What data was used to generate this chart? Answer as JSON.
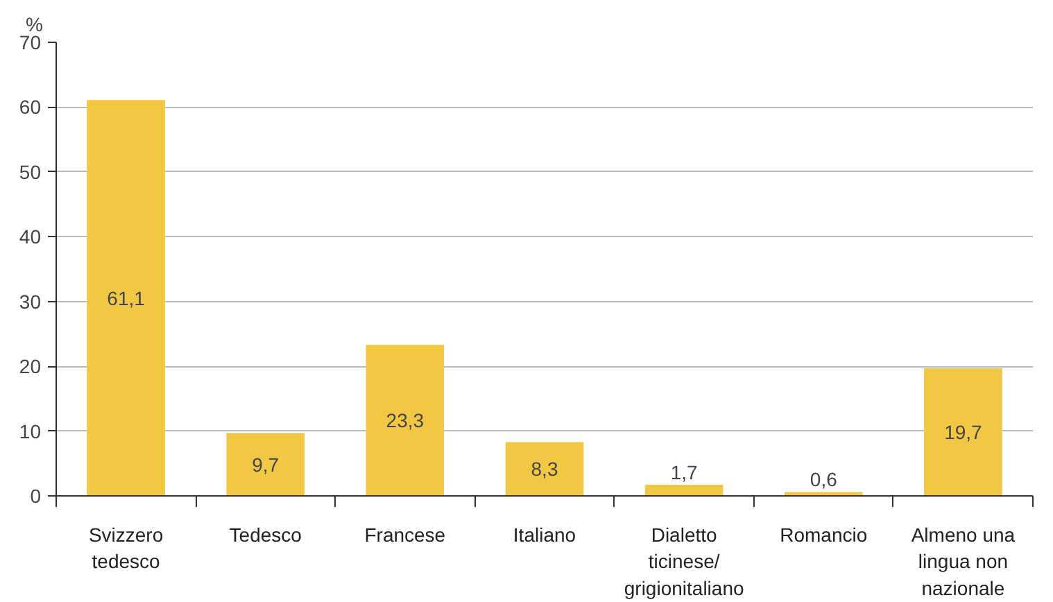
{
  "chart_data": {
    "type": "bar",
    "ylabel": "%",
    "categories": [
      "Svizzero tedesco",
      "Tedesco",
      "Francese",
      "Italiano",
      "Dialetto ticinese/ grigionitaliano",
      "Romancio",
      "Almeno una lingua non nazionale"
    ],
    "values": [
      61.1,
      9.7,
      23.3,
      8.3,
      1.7,
      0.6,
      19.7
    ],
    "value_labels": [
      "61,1",
      "9,7",
      "23,3",
      "8,3",
      "1,7",
      "0,6",
      "19,7"
    ],
    "color": "#f2c744",
    "ylim": [
      0,
      70
    ],
    "yticks": [
      0,
      10,
      20,
      30,
      40,
      50,
      60,
      70
    ],
    "grid": "y"
  }
}
